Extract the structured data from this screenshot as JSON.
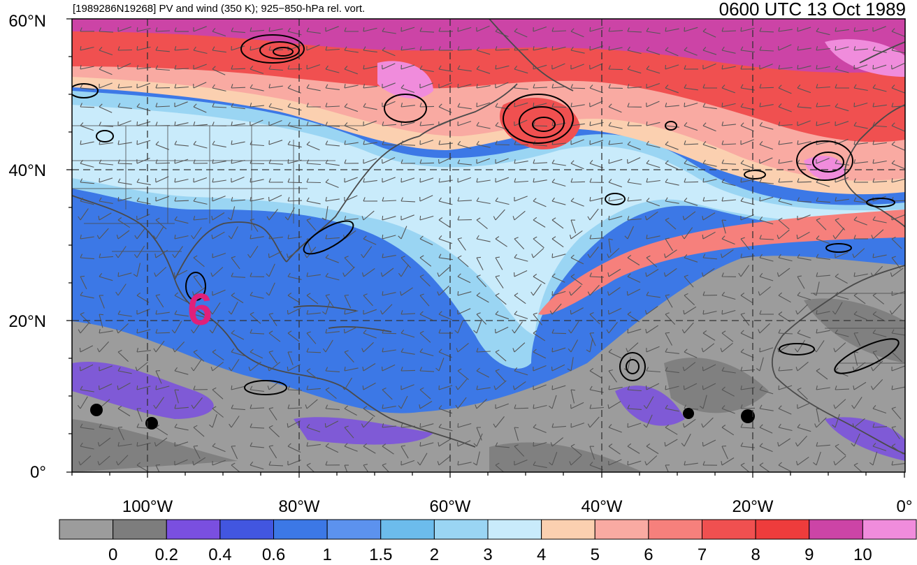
{
  "header": {
    "left_title": "[1989286N19268] PV and wind (350 K); 925−850-hPa rel. vort.",
    "right_title": "0600 UTC 13 Oct 1989"
  },
  "axes": {
    "lat_labels": [
      "60°N",
      "40°N",
      "20°N",
      "0°"
    ],
    "lon_labels": [
      "100°W",
      "80°W",
      "60°W",
      "40°W",
      "20°W",
      "0°"
    ]
  },
  "storm_marker": {
    "glyph": "6",
    "icon": "tropical-cyclone-symbol",
    "color": "#e0207a"
  },
  "colorbar": {
    "labels": [
      "0",
      "0.2",
      "0.4",
      "0.6",
      "1",
      "1.5",
      "2",
      "3",
      "4",
      "5",
      "6",
      "7",
      "8",
      "9",
      "10"
    ],
    "colors": [
      "#9c9c9c",
      "#7d7d7d",
      "#7a4fe0",
      "#4256e0",
      "#3c78e6",
      "#5c92ee",
      "#6cbcec",
      "#9ad5f3",
      "#c9ebfb",
      "#fbd0b0",
      "#f9aaa2",
      "#f6807c",
      "#f05050",
      "#ee3c3c",
      "#cc44a6",
      "#f08cdc"
    ]
  },
  "map_colors": {
    "land_border": "#4a4a4a",
    "grid": "#333333",
    "contour": "#000000"
  }
}
